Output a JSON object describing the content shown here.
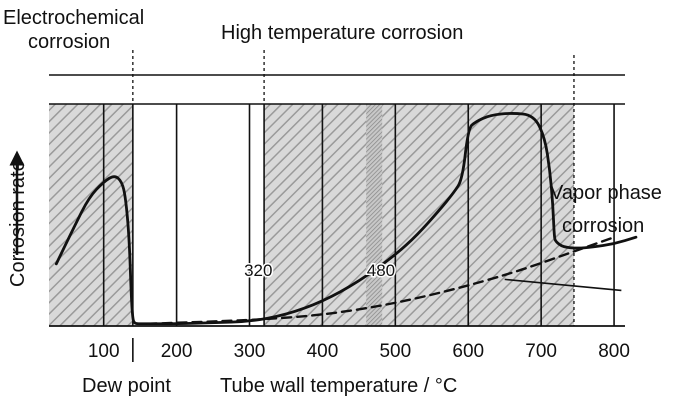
{
  "chart_data": {
    "type": "line",
    "xlabel": "Tube wall temperature / °C",
    "ylabel": "Corrosion rate",
    "xlim": [
      25,
      815
    ],
    "ylim": [
      0,
      100
    ],
    "x_ticks": [
      100,
      200,
      300,
      400,
      500,
      600,
      700,
      800
    ],
    "grid": true,
    "region_labels": {
      "electrochemical": "Electrochemical\ncorrosion",
      "high_temp": "High temperature corrosion",
      "vapor": "Vapor phase\ncorrosion",
      "dew_point": "Dew point"
    },
    "annotations": [
      {
        "text": "320",
        "x": 320
      },
      {
        "text": "480",
        "x": 480
      }
    ],
    "boundaries": [
      {
        "name": "dew-point-line",
        "x": 140
      },
      {
        "name": "320-line",
        "x": 320
      },
      {
        "name": "vapor-line",
        "x": 745
      }
    ],
    "hatched_regions": [
      {
        "x0": 25,
        "x1": 140
      },
      {
        "x0": 320,
        "x1": 745
      }
    ],
    "dense_band": {
      "x0": 460,
      "x1": 482
    },
    "series": [
      {
        "style": "solid",
        "x": [
          35,
          60,
          80,
          100,
          115,
          125,
          130,
          135,
          138,
          140,
          142,
          145,
          155,
          200,
          250,
          300,
          350,
          400,
          450,
          500,
          530,
          560,
          580,
          592,
          600,
          610,
          630,
          660,
          690,
          705,
          712,
          716,
          718,
          720,
          730,
          750,
          770,
          800,
          830
        ],
        "y": [
          28,
          45,
          58,
          65,
          68,
          65,
          58,
          40,
          12,
          3,
          1.5,
          1,
          1,
          1,
          1.5,
          2,
          5,
          11,
          20,
          32,
          41,
          52,
          60,
          66,
          89,
          92,
          95,
          96,
          95,
          85,
          70,
          55,
          40,
          38,
          35.5,
          35,
          35.5,
          37,
          40
        ]
      },
      {
        "style": "dashed",
        "x": [
          160,
          250,
          320,
          400,
          480,
          550,
          620,
          680,
          740,
          800
        ],
        "y": [
          1,
          2,
          3,
          5,
          9,
          14,
          20,
          26,
          33,
          40
        ]
      }
    ],
    "pointer_line": {
      "x": [
        650,
        810
      ],
      "y": [
        21,
        16
      ]
    }
  }
}
